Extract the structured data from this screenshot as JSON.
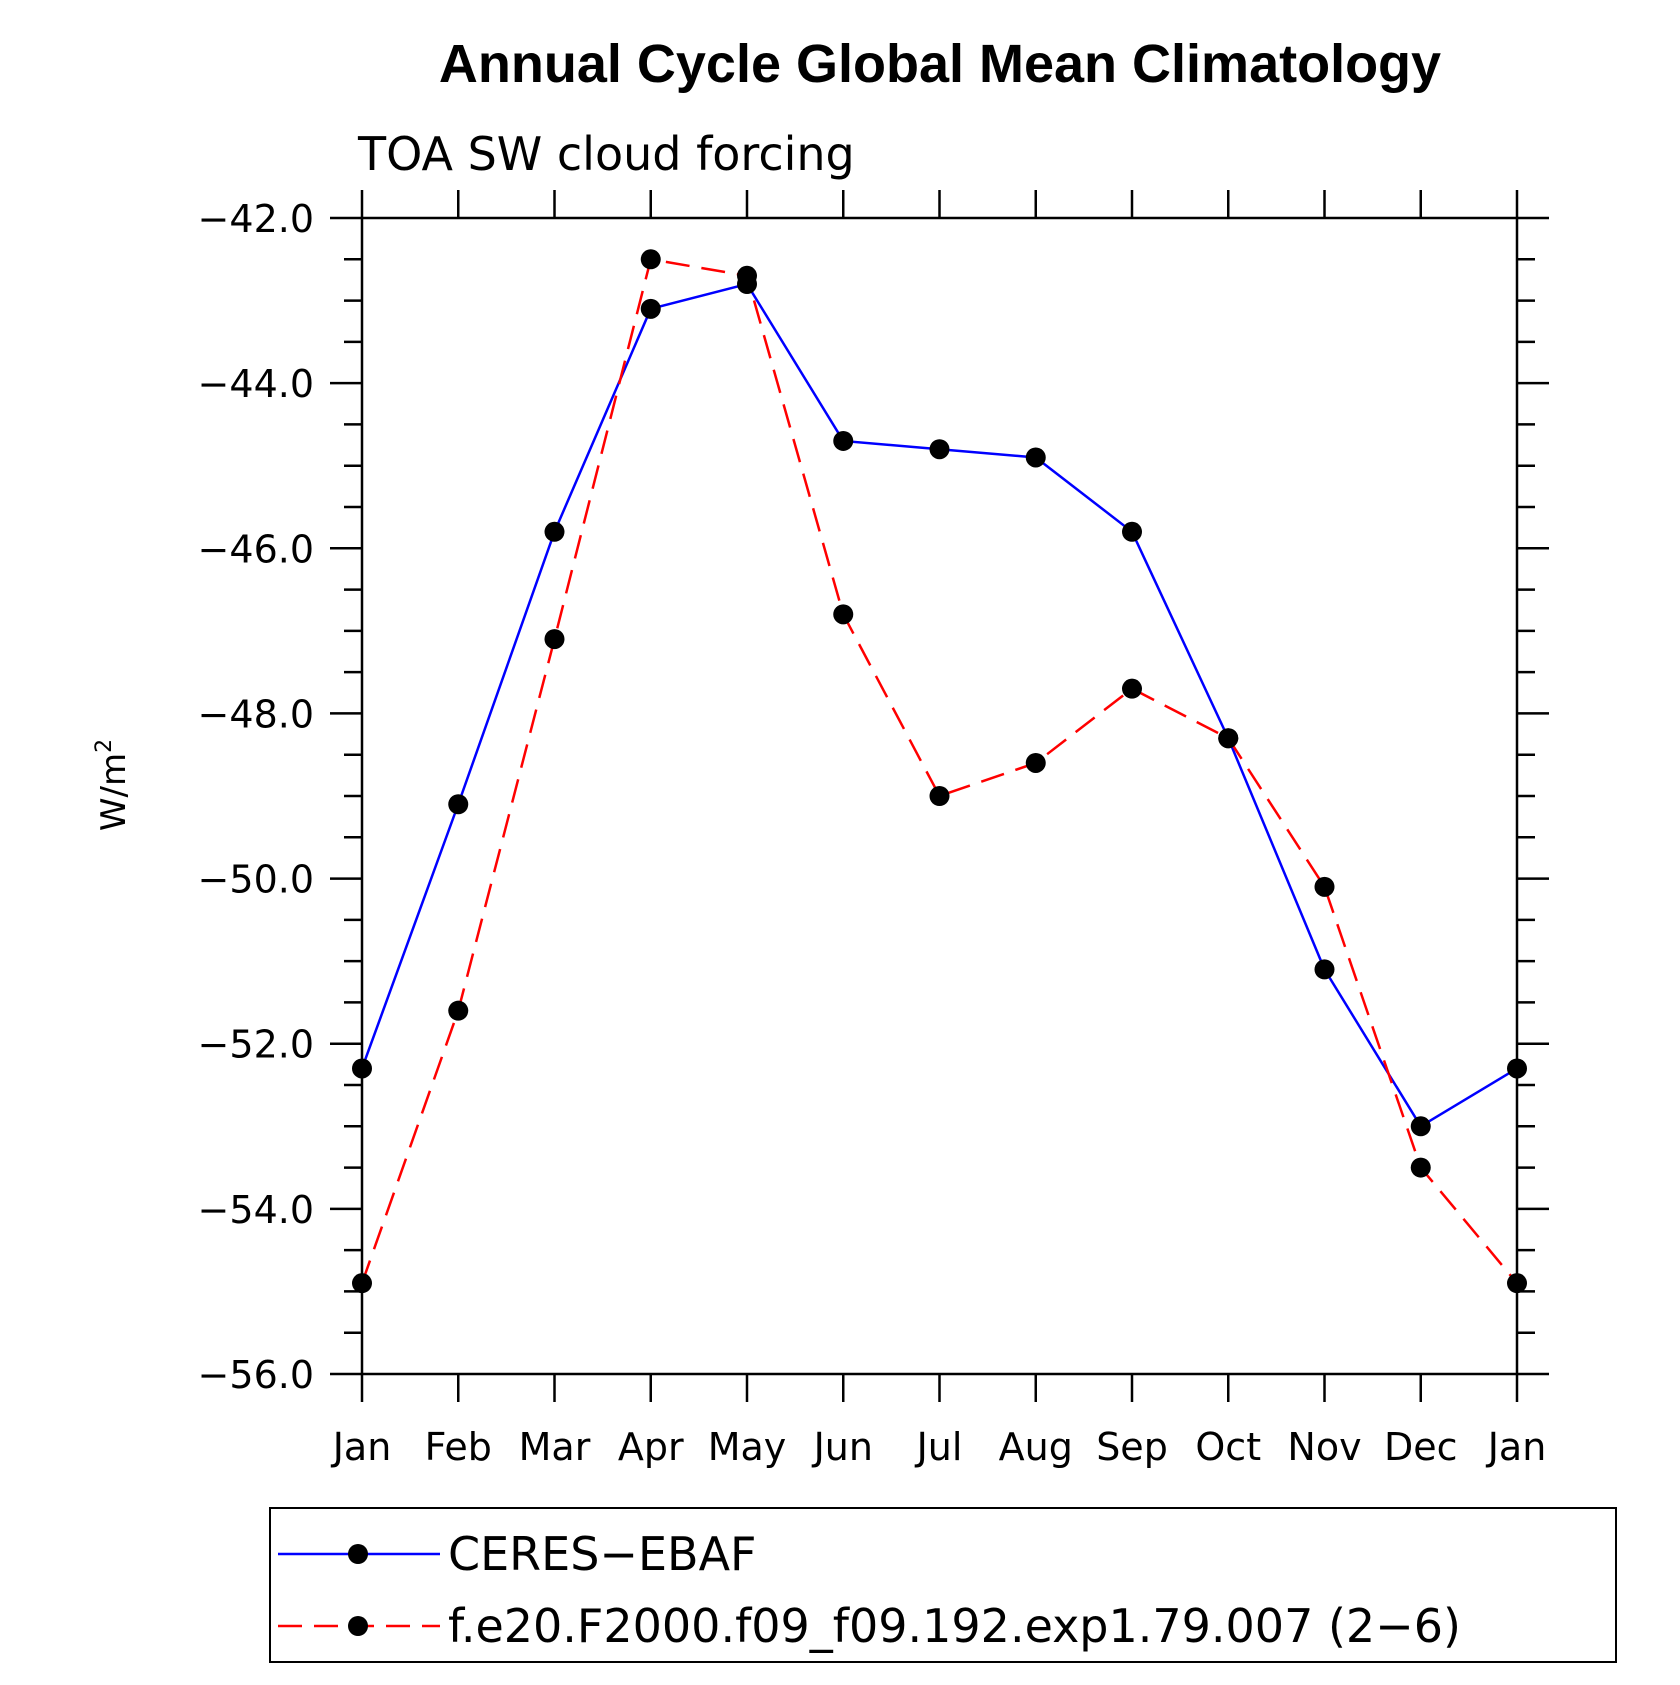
{
  "chart_data": {
    "type": "line",
    "title": "Annual Cycle Global Mean Climatology",
    "subtitle": "TOA SW cloud forcing",
    "xlabel": "",
    "ylabel": "W/m",
    "ylabel_superscript": "2",
    "categories": [
      "Jan",
      "Feb",
      "Mar",
      "Apr",
      "May",
      "Jun",
      "Jul",
      "Aug",
      "Sep",
      "Oct",
      "Nov",
      "Dec",
      "Jan"
    ],
    "ylim": [
      -56.0,
      -42.0
    ],
    "yticks": [
      -42.0,
      -44.0,
      -46.0,
      -48.0,
      -50.0,
      -52.0,
      -54.0,
      -56.0
    ],
    "ytick_labels": [
      "−42.0",
      "−44.0",
      "−46.0",
      "−48.0",
      "−50.0",
      "−52.0",
      "−54.0",
      "−56.0"
    ],
    "minor_ytick_step": 0.5,
    "grid": false,
    "legend_position": "bottom",
    "series": [
      {
        "name": "CERES−EBAF",
        "color": "#0000ff",
        "line_style": "solid",
        "marker": "filled-circle",
        "values": [
          -52.3,
          -49.1,
          -45.8,
          -43.1,
          -42.8,
          -44.7,
          -44.8,
          -44.9,
          -45.8,
          -48.3,
          -51.1,
          -53.0,
          -52.3
        ]
      },
      {
        "name": "f.e20.F2000.f09_f09.192.exp1.79.007 (2−6)",
        "color": "#ff0000",
        "line_style": "dashed",
        "marker": "filled-circle",
        "values": [
          -54.9,
          -51.6,
          -47.1,
          -42.5,
          -42.7,
          -46.8,
          -49.0,
          -48.6,
          -47.7,
          -48.3,
          -50.1,
          -53.5,
          -54.9
        ]
      }
    ]
  }
}
